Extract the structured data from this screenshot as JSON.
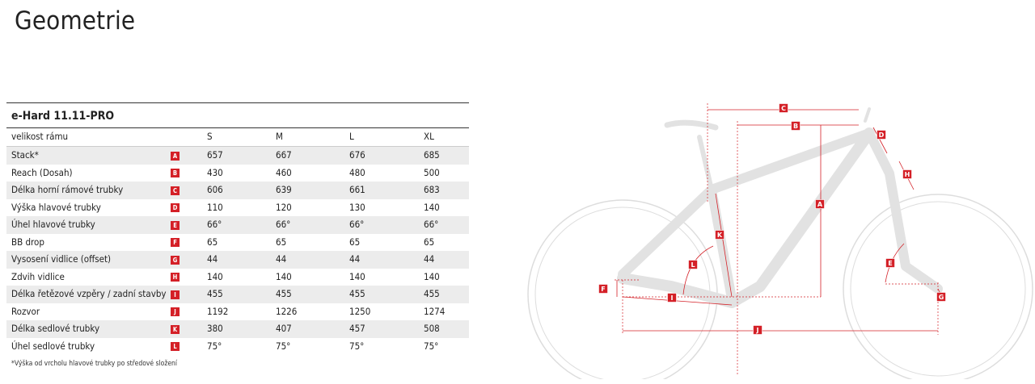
{
  "header": {
    "title": "Geometrie"
  },
  "table": {
    "model": "e-Hard 11.11-PRO",
    "columns": [
      "velikost rámu",
      "S",
      "M",
      "L",
      "XL"
    ],
    "rows": [
      [
        "Stack*",
        "A",
        657,
        667,
        676,
        685
      ],
      [
        "Reach (Dosah)",
        "B",
        430,
        460,
        480,
        500
      ],
      [
        "Délka horní rámové trubky",
        "C",
        606,
        639,
        661,
        683
      ],
      [
        "Výška hlavové trubky",
        "D",
        110,
        120,
        130,
        140
      ],
      [
        "Úhel hlavové trubky",
        "E",
        "66°",
        "66°",
        "66°",
        "66°"
      ],
      [
        "BB drop",
        "F",
        65,
        65,
        65,
        65
      ],
      [
        "Vysosení vidlice (offset)",
        "G",
        44,
        44,
        44,
        44
      ],
      [
        "Zdvih vidlice",
        "H",
        140,
        140,
        140,
        140
      ],
      [
        "Délka řetězové vzpěry / zadní stavby",
        "I",
        455,
        455,
        455,
        455
      ],
      [
        "Rozvor",
        "J",
        1192,
        1226,
        1250,
        1274
      ],
      [
        "Délka sedlové trubky",
        "K",
        380,
        407,
        457,
        508
      ],
      [
        "Úhel sedlové trubky",
        "L",
        "75°",
        "75°",
        "75°",
        "75°"
      ]
    ],
    "footnote": "*Výška od vrcholu hlavové trubky po středové složení"
  },
  "diagram": {
    "labels": [
      "A",
      "B",
      "C",
      "D",
      "E",
      "F",
      "G",
      "H",
      "I",
      "J",
      "K",
      "L"
    ]
  }
}
